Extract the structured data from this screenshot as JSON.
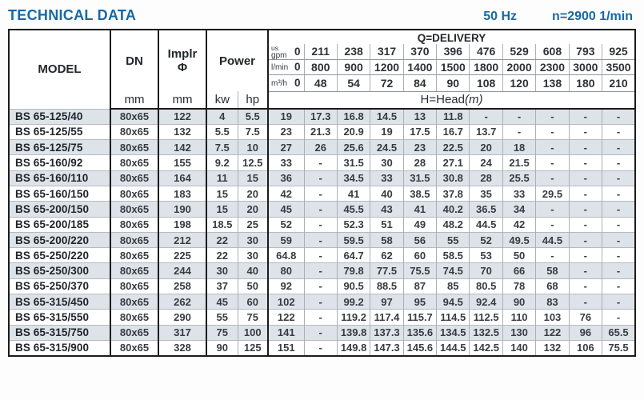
{
  "header": {
    "title": "TECHNICAL DATA",
    "frequency": "50 Hz",
    "speed": "n=2900 1/min"
  },
  "colors": {
    "accent_blue": "#1769a4",
    "row_shade": "#dde3e9",
    "border_dark": "#1b1b1b",
    "border_light": "#aab0b6"
  },
  "table": {
    "corner": {
      "model": "MODEL",
      "dn": "DN",
      "implr_line1": "Implr",
      "implr_line2": "Φ",
      "power": "Power",
      "dn_unit": "mm",
      "implr_unit": "mm",
      "kw_unit": "kw",
      "hp_unit": "hp"
    },
    "delivery": {
      "title": "Q=DELIVERY",
      "head_title": "H=Head",
      "head_unit": "(m)",
      "unit_rows": [
        {
          "label_sup": "us",
          "label": "gpm",
          "zero": "0",
          "values": [
            "211",
            "238",
            "317",
            "370",
            "396",
            "476",
            "529",
            "608",
            "793",
            "925"
          ]
        },
        {
          "label_sup": "",
          "label": "l/min",
          "zero": "0",
          "values": [
            "800",
            "900",
            "1200",
            "1400",
            "1500",
            "1800",
            "2000",
            "2300",
            "3000",
            "3500"
          ]
        },
        {
          "label_sup": "",
          "label": "m³/h",
          "zero": "0",
          "values": [
            "48",
            "54",
            "72",
            "84",
            "90",
            "108",
            "120",
            "138",
            "180",
            "210"
          ]
        }
      ]
    },
    "rows": [
      {
        "model": "BS 65-125/40",
        "dn": "80x65",
        "implr": "122",
        "kw": "4",
        "hp": "5.5",
        "head": [
          "19",
          "17.3",
          "16.8",
          "14.5",
          "13",
          "11.8",
          "-",
          "-",
          "-",
          "-",
          "-"
        ]
      },
      {
        "model": "BS 65-125/55",
        "dn": "80x65",
        "implr": "132",
        "kw": "5.5",
        "hp": "7.5",
        "head": [
          "23",
          "21.3",
          "20.9",
          "19",
          "17.5",
          "16.7",
          "13.7",
          "-",
          "-",
          "-",
          "-"
        ]
      },
      {
        "model": "BS 65-125/75",
        "dn": "80x65",
        "implr": "142",
        "kw": "7.5",
        "hp": "10",
        "head": [
          "27",
          "26",
          "25.6",
          "24.5",
          "23",
          "22.5",
          "20",
          "18",
          "-",
          "-",
          "-"
        ]
      },
      {
        "model": "BS 65-160/92",
        "dn": "80x65",
        "implr": "155",
        "kw": "9.2",
        "hp": "12.5",
        "head": [
          "33",
          "-",
          "31.5",
          "30",
          "28",
          "27.1",
          "24",
          "21.5",
          "-",
          "-",
          "-"
        ]
      },
      {
        "model": "BS 65-160/110",
        "dn": "80x65",
        "implr": "164",
        "kw": "11",
        "hp": "15",
        "head": [
          "36",
          "-",
          "34.5",
          "33",
          "31.5",
          "30.8",
          "28",
          "25.5",
          "-",
          "-",
          "-"
        ]
      },
      {
        "model": "BS 65-160/150",
        "dn": "80x65",
        "implr": "183",
        "kw": "15",
        "hp": "20",
        "head": [
          "42",
          "-",
          "41",
          "40",
          "38.5",
          "37.8",
          "35",
          "33",
          "29.5",
          "-",
          "-"
        ]
      },
      {
        "model": "BS 65-200/150",
        "dn": "80x65",
        "implr": "190",
        "kw": "15",
        "hp": "20",
        "head": [
          "45",
          "-",
          "45.5",
          "43",
          "41",
          "40.2",
          "36.5",
          "34",
          "-",
          "-",
          "-"
        ]
      },
      {
        "model": "BS 65-200/185",
        "dn": "80x65",
        "implr": "198",
        "kw": "18.5",
        "hp": "25",
        "head": [
          "52",
          "-",
          "52.3",
          "51",
          "49",
          "48.2",
          "44.5",
          "42",
          "-",
          "-",
          "-"
        ]
      },
      {
        "model": "BS 65-200/220",
        "dn": "80x65",
        "implr": "212",
        "kw": "22",
        "hp": "30",
        "head": [
          "59",
          "-",
          "59.5",
          "58",
          "56",
          "55",
          "52",
          "49.5",
          "44.5",
          "-",
          "-"
        ]
      },
      {
        "model": "BS 65-250/220",
        "dn": "80x65",
        "implr": "225",
        "kw": "22",
        "hp": "30",
        "head": [
          "64.8",
          "-",
          "64.7",
          "62",
          "60",
          "58.5",
          "53",
          "50",
          "-",
          "-",
          "-"
        ]
      },
      {
        "model": "BS 65-250/300",
        "dn": "80x65",
        "implr": "244",
        "kw": "30",
        "hp": "40",
        "head": [
          "80",
          "-",
          "79.8",
          "77.5",
          "75.5",
          "74.5",
          "70",
          "66",
          "58",
          "-",
          "-"
        ]
      },
      {
        "model": "BS 65-250/370",
        "dn": "80x65",
        "implr": "258",
        "kw": "37",
        "hp": "50",
        "head": [
          "92",
          "-",
          "90.5",
          "88.5",
          "87",
          "85",
          "80.5",
          "78",
          "68",
          "-",
          "-"
        ]
      },
      {
        "model": "BS 65-315/450",
        "dn": "80x65",
        "implr": "262",
        "kw": "45",
        "hp": "60",
        "head": [
          "102",
          "-",
          "99.2",
          "97",
          "95",
          "94.5",
          "92.4",
          "90",
          "83",
          "-",
          "-"
        ]
      },
      {
        "model": "BS 65-315/550",
        "dn": "80x65",
        "implr": "290",
        "kw": "55",
        "hp": "75",
        "head": [
          "122",
          "-",
          "119.2",
          "117.4",
          "115.7",
          "114.5",
          "112.5",
          "110",
          "103",
          "76",
          "-"
        ]
      },
      {
        "model": "BS 65-315/750",
        "dn": "80x65",
        "implr": "317",
        "kw": "75",
        "hp": "100",
        "head": [
          "141",
          "-",
          "139.8",
          "137.3",
          "135.6",
          "134.5",
          "132.5",
          "130",
          "122",
          "96",
          "65.5"
        ]
      },
      {
        "model": "BS 65-315/900",
        "dn": "80x65",
        "implr": "328",
        "kw": "90",
        "hp": "125",
        "head": [
          "151",
          "-",
          "149.8",
          "147.3",
          "145.6",
          "144.5",
          "142.5",
          "140",
          "132",
          "106",
          "75.5"
        ]
      }
    ]
  }
}
